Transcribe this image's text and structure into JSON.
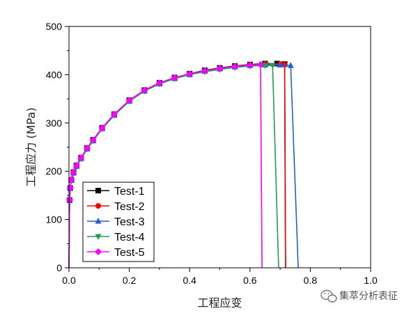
{
  "chart_data": {
    "type": "line",
    "xlabel": "工程应变",
    "ylabel": "工程应力 (MPa)",
    "xlim": [
      0.0,
      1.0
    ],
    "ylim": [
      0,
      500
    ],
    "x_ticks": [
      "0.0",
      "0.2",
      "0.4",
      "0.6",
      "0.8",
      "1.0"
    ],
    "y_ticks": [
      "0",
      "100",
      "200",
      "300",
      "400",
      "500"
    ],
    "x_tick_values": [
      0.0,
      0.2,
      0.4,
      0.6,
      0.8,
      1.0
    ],
    "y_tick_values": [
      0,
      100,
      200,
      300,
      400,
      500
    ],
    "grid": false,
    "legend_position": "lower-left",
    "series": [
      {
        "name": "Test-1",
        "color": "#000000",
        "marker": "square",
        "x": [
          0,
          0.002,
          0.004,
          0.008,
          0.015,
          0.025,
          0.04,
          0.06,
          0.08,
          0.11,
          0.15,
          0.2,
          0.25,
          0.3,
          0.35,
          0.4,
          0.45,
          0.5,
          0.55,
          0.6,
          0.65,
          0.69,
          0.715,
          0.718
        ],
        "y": [
          0,
          140,
          165,
          182,
          198,
          212,
          228,
          248,
          265,
          290,
          318,
          347,
          368,
          383,
          394,
          402,
          409,
          414,
          418,
          421,
          423,
          423,
          422,
          0
        ]
      },
      {
        "name": "Test-2",
        "color": "#ff0000",
        "marker": "circle",
        "x": [
          0,
          0.002,
          0.004,
          0.008,
          0.015,
          0.025,
          0.04,
          0.06,
          0.08,
          0.11,
          0.15,
          0.2,
          0.25,
          0.3,
          0.35,
          0.4,
          0.45,
          0.5,
          0.55,
          0.6,
          0.65,
          0.7,
          0.715,
          0.718
        ],
        "y": [
          0,
          140,
          165,
          182,
          197,
          211,
          227,
          247,
          264,
          289,
          317,
          346,
          367,
          382,
          393,
          401,
          408,
          413,
          417,
          420,
          422,
          422,
          421,
          0
        ]
      },
      {
        "name": "Test-3",
        "color": "#1f5fd6",
        "marker": "triangle-up",
        "x": [
          0,
          0.002,
          0.004,
          0.008,
          0.015,
          0.025,
          0.04,
          0.06,
          0.08,
          0.11,
          0.15,
          0.2,
          0.25,
          0.3,
          0.35,
          0.4,
          0.45,
          0.5,
          0.55,
          0.6,
          0.65,
          0.7,
          0.735,
          0.76
        ],
        "y": [
          0,
          139,
          164,
          181,
          196,
          210,
          226,
          246,
          263,
          288,
          316,
          345,
          366,
          381,
          392,
          400,
          407,
          412,
          416,
          419,
          420,
          420,
          419,
          0
        ]
      },
      {
        "name": "Test-4",
        "color": "#1f9e55",
        "marker": "triangle-down",
        "x": [
          0,
          0.002,
          0.004,
          0.008,
          0.015,
          0.025,
          0.04,
          0.06,
          0.08,
          0.11,
          0.15,
          0.2,
          0.25,
          0.3,
          0.35,
          0.4,
          0.45,
          0.5,
          0.55,
          0.6,
          0.65,
          0.675,
          0.695
        ],
        "y": [
          0,
          139,
          164,
          181,
          196,
          210,
          226,
          246,
          263,
          288,
          316,
          345,
          366,
          381,
          392,
          400,
          406,
          411,
          415,
          418,
          419,
          419,
          0
        ]
      },
      {
        "name": "Test-5",
        "color": "#ff00ff",
        "marker": "diamond",
        "x": [
          0,
          0.002,
          0.004,
          0.008,
          0.015,
          0.025,
          0.04,
          0.06,
          0.08,
          0.11,
          0.15,
          0.2,
          0.25,
          0.3,
          0.35,
          0.4,
          0.45,
          0.5,
          0.55,
          0.6,
          0.635,
          0.64
        ],
        "y": [
          0,
          141,
          166,
          183,
          198,
          212,
          228,
          248,
          265,
          290,
          318,
          347,
          368,
          383,
          394,
          402,
          408,
          413,
          417,
          420,
          421,
          0
        ]
      }
    ]
  },
  "watermark": {
    "text": "集萃分析表征",
    "icon": "wechat-icon"
  }
}
